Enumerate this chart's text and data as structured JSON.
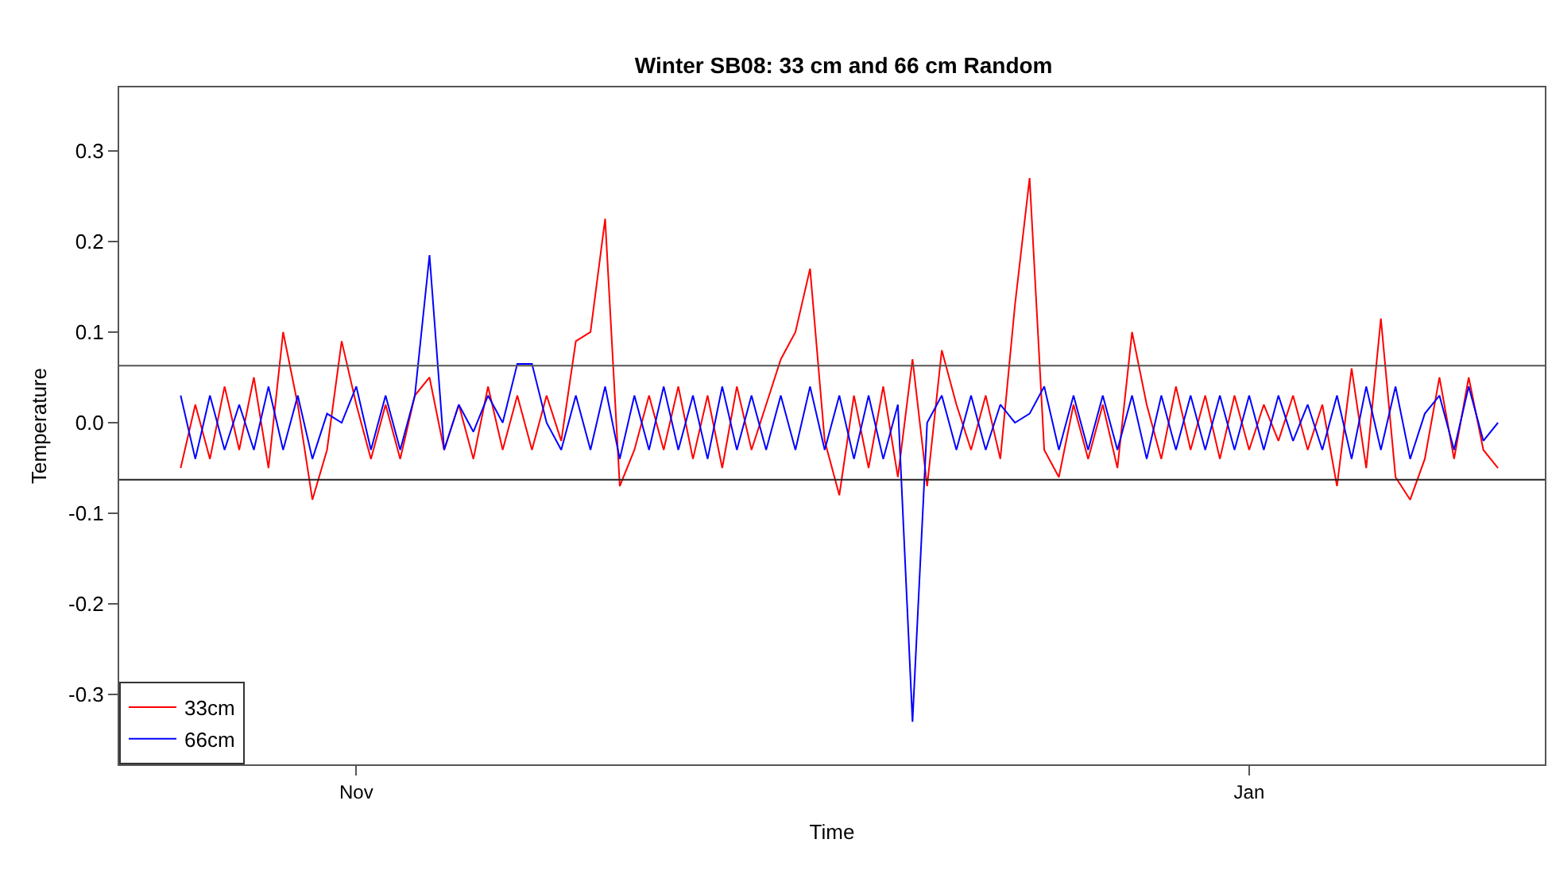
{
  "chart_data": {
    "type": "line",
    "title": "Winter SB08: 33 cm and 66 cm Random",
    "xlabel": "Time",
    "ylabel": "Temperature",
    "categories": [
      null,
      null,
      null,
      null,
      null,
      null,
      null,
      null,
      null,
      null,
      null,
      null,
      "Nov",
      null,
      null,
      null,
      null,
      null,
      null,
      null,
      null,
      null,
      null,
      null,
      null,
      null,
      null,
      null,
      null,
      null,
      null,
      null,
      null,
      null,
      null,
      null,
      null,
      null,
      null,
      null,
      null,
      null,
      null,
      null,
      null,
      null,
      null,
      null,
      null,
      null,
      null,
      null,
      null,
      null,
      null,
      null,
      null,
      null,
      null,
      null,
      null,
      null,
      null,
      null,
      null,
      null,
      null,
      null,
      null,
      null,
      null,
      null,
      null,
      "Jan",
      null,
      null,
      null,
      null,
      null,
      null,
      null,
      null,
      null,
      null,
      null,
      null,
      null,
      null,
      null,
      null,
      null
    ],
    "series": [
      {
        "name": "33cm",
        "color": "#ff0000",
        "values": [
          -0.05,
          0.02,
          -0.04,
          0.04,
          -0.03,
          0.05,
          -0.05,
          0.1,
          0.02,
          -0.085,
          -0.03,
          0.09,
          0.02,
          -0.04,
          0.02,
          -0.04,
          0.03,
          0.05,
          -0.03,
          0.02,
          -0.04,
          0.04,
          -0.03,
          0.03,
          -0.03,
          0.03,
          -0.02,
          0.09,
          0.1,
          0.225,
          -0.07,
          -0.03,
          0.03,
          -0.03,
          0.04,
          -0.04,
          0.03,
          -0.05,
          0.04,
          -0.03,
          0.02,
          0.07,
          0.1,
          0.17,
          -0.02,
          -0.08,
          0.03,
          -0.05,
          0.04,
          -0.06,
          0.07,
          -0.07,
          0.08,
          0.02,
          -0.03,
          0.03,
          -0.04,
          0.13,
          0.27,
          -0.03,
          -0.06,
          0.02,
          -0.04,
          0.02,
          -0.05,
          0.1,
          0.02,
          -0.04,
          0.04,
          -0.03,
          0.03,
          -0.04,
          0.03,
          -0.03,
          0.02,
          -0.02,
          0.03,
          -0.03,
          0.02,
          -0.07,
          0.06,
          -0.05,
          0.115,
          -0.06,
          -0.085,
          -0.04,
          0.05,
          -0.04,
          0.05,
          -0.03,
          -0.05
        ]
      },
      {
        "name": "66cm",
        "color": "#0000ff",
        "values": [
          0.03,
          -0.04,
          0.03,
          -0.03,
          0.02,
          -0.03,
          0.04,
          -0.03,
          0.03,
          -0.04,
          0.01,
          0.0,
          0.04,
          -0.03,
          0.03,
          -0.03,
          0.03,
          0.185,
          -0.03,
          0.02,
          -0.01,
          0.03,
          0.0,
          0.065,
          0.065,
          0.0,
          -0.03,
          0.03,
          -0.03,
          0.04,
          -0.04,
          0.03,
          -0.03,
          0.04,
          -0.03,
          0.03,
          -0.04,
          0.04,
          -0.03,
          0.03,
          -0.03,
          0.03,
          -0.03,
          0.04,
          -0.03,
          0.03,
          -0.04,
          0.03,
          -0.04,
          0.02,
          -0.33,
          0.0,
          0.03,
          -0.03,
          0.03,
          -0.03,
          0.02,
          0.0,
          0.01,
          0.04,
          -0.03,
          0.03,
          -0.03,
          0.03,
          -0.03,
          0.03,
          -0.04,
          0.03,
          -0.03,
          0.03,
          -0.03,
          0.03,
          -0.03,
          0.03,
          -0.03,
          0.03,
          -0.02,
          0.02,
          -0.03,
          0.03,
          -0.04,
          0.04,
          -0.03,
          0.04,
          -0.04,
          0.01,
          0.03,
          -0.03,
          0.04,
          -0.02,
          0.0
        ]
      }
    ],
    "ylim": [
      -0.377,
      0.37
    ],
    "yticks": [
      {
        "value": -0.3,
        "label": "-0.3"
      },
      {
        "value": -0.2,
        "label": "-0.2"
      },
      {
        "value": -0.1,
        "label": "-0.1"
      },
      {
        "value": 0,
        "label": "0.0"
      },
      {
        "value": 0.1,
        "label": "0.1"
      },
      {
        "value": 0.2,
        "label": "0.2"
      },
      {
        "value": 0.3,
        "label": "0.3"
      }
    ],
    "ref_lines": [
      {
        "axis": "y",
        "value": 0.063,
        "color": "#555555"
      },
      {
        "axis": "y",
        "value": -0.063,
        "color": "#222222"
      }
    ],
    "legend": "bottom left",
    "marker": "none",
    "line_style": "solid"
  }
}
